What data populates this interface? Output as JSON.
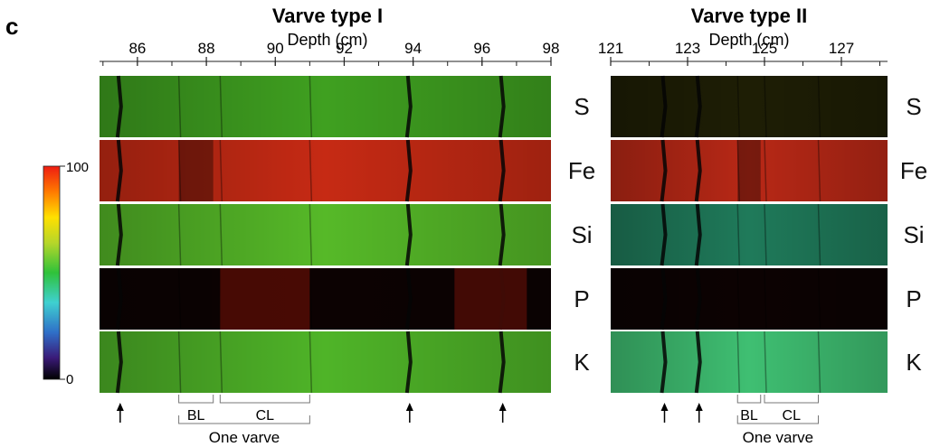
{
  "panel_letter": "c",
  "colorbar": {
    "max_label": "100",
    "min_label": "0",
    "colors": [
      "#000000",
      "#3a1a78",
      "#2f6fc8",
      "#3fd0d0",
      "#2fc23a",
      "#b6d62a",
      "#ffe000",
      "#ff7a00",
      "#ee1c12"
    ]
  },
  "elements": [
    {
      "symbol": "S",
      "color": "#3fa020",
      "color2": "#1e1e05"
    },
    {
      "symbol": "Fe",
      "color": "#c62a14",
      "color2": "#b82816"
    },
    {
      "symbol": "Si",
      "color": "#56b928",
      "color2": "#1f7a5a"
    },
    {
      "symbol": "P",
      "color": "#0c0202",
      "color2": "#0c0202"
    },
    {
      "symbol": "K",
      "color": "#4fb428",
      "color2": "#3fbf72"
    }
  ],
  "panels": [
    {
      "title": "Varve type I",
      "axis_label": "Depth (cm)",
      "ticks": [
        "86",
        "88",
        "90",
        "92",
        "94",
        "96",
        "98"
      ],
      "tick_values": [
        86,
        88,
        90,
        92,
        94,
        96,
        98
      ],
      "domain": [
        84.9,
        98
      ],
      "arrows_at": [
        85.5,
        93.9,
        96.6
      ],
      "bl": {
        "from": 87.2,
        "to": 88.2,
        "label": "BL"
      },
      "cl": {
        "from": 88.4,
        "to": 91.0,
        "label": "CL"
      },
      "varve": {
        "from": 87.2,
        "to": 91.0,
        "label": "One varve"
      }
    },
    {
      "title": "Varve type II",
      "axis_label": "Depth (cm)",
      "ticks": [
        "121",
        "123",
        "125",
        "127"
      ],
      "tick_values": [
        121,
        123,
        125,
        127
      ],
      "domain": [
        121,
        128.2
      ],
      "arrows_at": [
        122.4,
        123.3
      ],
      "bl": {
        "from": 124.3,
        "to": 124.9,
        "label": "BL"
      },
      "cl": {
        "from": 125.0,
        "to": 126.4,
        "label": "CL"
      },
      "varve": {
        "from": 124.3,
        "to": 126.4,
        "label": "One varve"
      }
    }
  ]
}
